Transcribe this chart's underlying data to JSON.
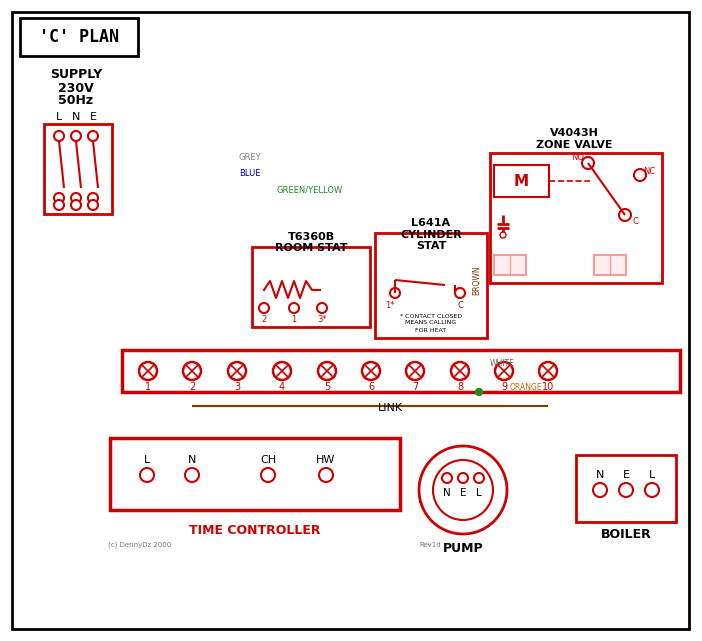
{
  "title": "'C' PLAN",
  "red": "#cc0000",
  "brown": "#7B3F00",
  "blue": "#0000cc",
  "green": "#228B22",
  "grey": "#888888",
  "orange": "#CC6600",
  "black": "#000000",
  "pink": "#ff9999",
  "white_wire": "#666666",
  "terminals": [
    "1",
    "2",
    "3",
    "4",
    "5",
    "6",
    "7",
    "8",
    "9",
    "10"
  ],
  "tc_terminals": [
    "L",
    "N",
    "CH",
    "HW"
  ],
  "pump_terminals": [
    "N",
    "E",
    "L"
  ],
  "boiler_terminals": [
    "N",
    "E",
    "L"
  ]
}
